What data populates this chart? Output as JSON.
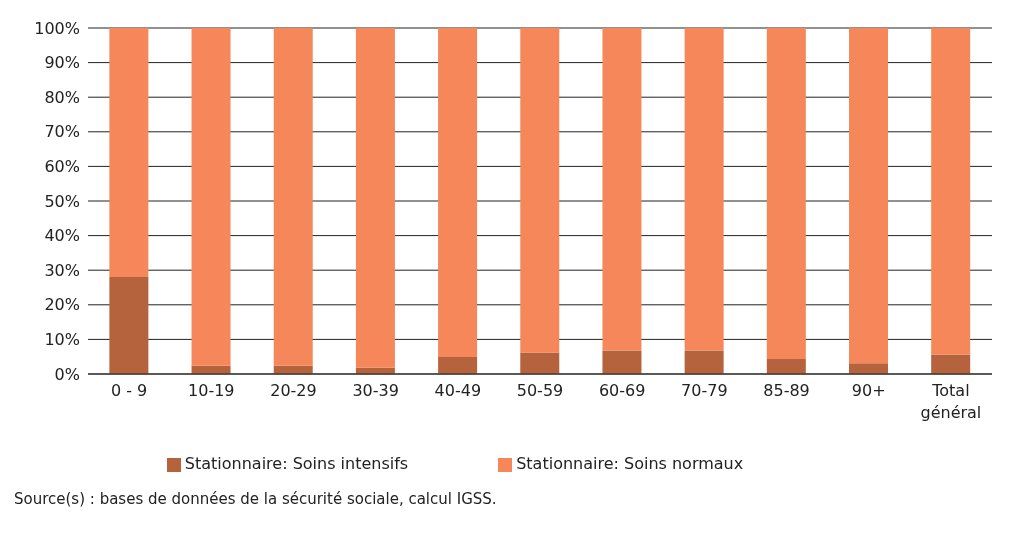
{
  "chart_data": {
    "type": "bar",
    "stacked": true,
    "categories": [
      "0 - 9",
      "10-19",
      "20-29",
      "30-39",
      "40-49",
      "50-59",
      "60-69",
      "70-79",
      "85-89",
      "90+",
      "Total général"
    ],
    "series": [
      {
        "name": "Stationnaire: Soins intensifs",
        "color": "#b5633d",
        "values": [
          28,
          2.4,
          2.4,
          1.8,
          4.9,
          6.2,
          6.8,
          6.8,
          4.3,
          3.1,
          5.6
        ]
      },
      {
        "name": "Stationnaire: Soins normaux",
        "color": "#f5875a",
        "values": [
          72,
          97.6,
          97.6,
          98.2,
          95.1,
          93.8,
          93.2,
          93.2,
          95.7,
          96.9,
          94.4
        ]
      }
    ],
    "ylim": [
      0,
      100
    ],
    "yticks": [
      {
        "value": 0,
        "label": "0%"
      },
      {
        "value": 10,
        "label": "10%"
      },
      {
        "value": 20,
        "label": "20%"
      },
      {
        "value": 30,
        "label": "30%"
      },
      {
        "value": 40,
        "label": "40%"
      },
      {
        "value": 50,
        "label": "50%"
      },
      {
        "value": 60,
        "label": "60%"
      },
      {
        "value": 70,
        "label": "70%"
      },
      {
        "value": 80,
        "label": "80%"
      },
      {
        "value": 90,
        "label": "90%"
      },
      {
        "value": 100,
        "label": "100%"
      }
    ],
    "grid": "y",
    "legend": "bottom",
    "annotations": [
      "Source(s) : bases de données de la sécurité sociale, calcul IGSS."
    ]
  }
}
